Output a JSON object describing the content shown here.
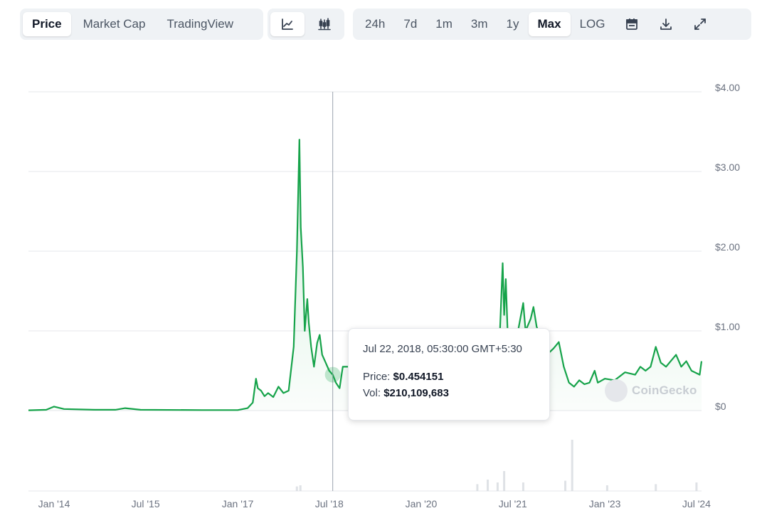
{
  "toolbar": {
    "view_tabs": [
      {
        "label": "Price",
        "active": true
      },
      {
        "label": "Market Cap",
        "active": false
      },
      {
        "label": "TradingView",
        "active": false
      }
    ],
    "chart_type_icons": [
      "line-chart-icon",
      "candlestick-icon"
    ],
    "ranges": [
      {
        "label": "24h",
        "active": false
      },
      {
        "label": "7d",
        "active": false
      },
      {
        "label": "1m",
        "active": false
      },
      {
        "label": "3m",
        "active": false
      },
      {
        "label": "1y",
        "active": false
      },
      {
        "label": "Max",
        "active": true
      },
      {
        "label": "LOG",
        "active": false
      }
    ],
    "tool_icons": [
      "calendar-icon",
      "download-icon",
      "fullscreen-icon"
    ]
  },
  "tooltip": {
    "date": "Jul 22, 2018, 05:30:00 GMT+5:30",
    "price_label": "Price:",
    "price_value": "$0.454151",
    "vol_label": "Vol:",
    "vol_value": "$210,109,683"
  },
  "watermark": "CoinGecko",
  "colors": {
    "line": "#16a34a",
    "area_fill": "#16a34a",
    "grid": "#e5e7eb",
    "volume": "#d1d5db",
    "crosshair": "#9ca3af"
  },
  "chart_data": {
    "type": "line",
    "title": "",
    "xlabel": "",
    "ylabel": "",
    "x_ticks": [
      "Jan '14",
      "Jul '15",
      "Jan '17",
      "Jul '18",
      "Jan '20",
      "Jul '21",
      "Jan '23",
      "Jul '24"
    ],
    "y_ticks": [
      "$0",
      "$1.00",
      "$2.00",
      "$3.00",
      "$4.00"
    ],
    "ylim": [
      0,
      4
    ],
    "xlim": [
      "2013-08-01",
      "2024-07-31"
    ],
    "grid": true,
    "series": [
      {
        "name": "",
        "points": [
          [
            "2013-08-01",
            0.004
          ],
          [
            "2013-11-15",
            0.01
          ],
          [
            "2014-01-01",
            0.05
          ],
          [
            "2014-03-01",
            0.02
          ],
          [
            "2014-09-01",
            0.01
          ],
          [
            "2015-01-01",
            0.01
          ],
          [
            "2015-03-01",
            0.03
          ],
          [
            "2015-06-01",
            0.01
          ],
          [
            "2016-06-01",
            0.006
          ],
          [
            "2017-01-01",
            0.006
          ],
          [
            "2017-03-01",
            0.03
          ],
          [
            "2017-04-01",
            0.1
          ],
          [
            "2017-04-20",
            0.4
          ],
          [
            "2017-05-01",
            0.28
          ],
          [
            "2017-05-20",
            0.25
          ],
          [
            "2017-06-10",
            0.18
          ],
          [
            "2017-07-01",
            0.22
          ],
          [
            "2017-08-01",
            0.17
          ],
          [
            "2017-09-01",
            0.3
          ],
          [
            "2017-10-01",
            0.22
          ],
          [
            "2017-11-01",
            0.25
          ],
          [
            "2017-12-01",
            0.8
          ],
          [
            "2017-12-20",
            2.0
          ],
          [
            "2018-01-04",
            3.4
          ],
          [
            "2018-01-12",
            2.3
          ],
          [
            "2018-01-25",
            1.8
          ],
          [
            "2018-02-05",
            1.0
          ],
          [
            "2018-02-20",
            1.4
          ],
          [
            "2018-03-01",
            1.1
          ],
          [
            "2018-03-15",
            0.8
          ],
          [
            "2018-04-01",
            0.55
          ],
          [
            "2018-04-20",
            0.85
          ],
          [
            "2018-05-05",
            0.95
          ],
          [
            "2018-05-20",
            0.7
          ],
          [
            "2018-06-10",
            0.6
          ],
          [
            "2018-07-01",
            0.5
          ],
          [
            "2018-07-22",
            0.45
          ],
          [
            "2018-08-10",
            0.35
          ],
          [
            "2018-09-01",
            0.28
          ],
          [
            "2018-09-20",
            0.55
          ],
          [
            "2021-04-01",
            0.55
          ],
          [
            "2021-04-15",
            1.0
          ],
          [
            "2021-05-01",
            1.85
          ],
          [
            "2021-05-10",
            1.2
          ],
          [
            "2021-05-20",
            1.65
          ],
          [
            "2021-06-01",
            0.9
          ],
          [
            "2021-07-01",
            0.65
          ],
          [
            "2021-08-01",
            1.0
          ],
          [
            "2021-09-01",
            1.35
          ],
          [
            "2021-09-15",
            1.0
          ],
          [
            "2021-10-15",
            1.15
          ],
          [
            "2021-11-01",
            1.3
          ],
          [
            "2021-11-20",
            1.05
          ],
          [
            "2022-01-01",
            0.85
          ],
          [
            "2022-01-20",
            0.7
          ],
          [
            "2022-03-01",
            0.78
          ],
          [
            "2022-04-01",
            0.86
          ],
          [
            "2022-05-01",
            0.55
          ],
          [
            "2022-06-01",
            0.35
          ],
          [
            "2022-07-01",
            0.3
          ],
          [
            "2022-08-01",
            0.38
          ],
          [
            "2022-09-01",
            0.33
          ],
          [
            "2022-10-01",
            0.35
          ],
          [
            "2022-11-01",
            0.5
          ],
          [
            "2022-11-20",
            0.35
          ],
          [
            "2023-01-01",
            0.4
          ],
          [
            "2023-03-01",
            0.38
          ],
          [
            "2023-05-01",
            0.48
          ],
          [
            "2023-07-01",
            0.45
          ],
          [
            "2023-08-01",
            0.55
          ],
          [
            "2023-09-01",
            0.5
          ],
          [
            "2023-10-01",
            0.55
          ],
          [
            "2023-11-01",
            0.8
          ],
          [
            "2023-12-01",
            0.6
          ],
          [
            "2024-01-01",
            0.55
          ],
          [
            "2024-03-01",
            0.7
          ],
          [
            "2024-04-01",
            0.55
          ],
          [
            "2024-05-01",
            0.62
          ],
          [
            "2024-06-01",
            0.5
          ],
          [
            "2024-07-20",
            0.45
          ],
          [
            "2024-07-31",
            0.62
          ]
        ]
      }
    ],
    "volume_spikes": [
      [
        "2017-12-20",
        0.08
      ],
      [
        "2018-01-10",
        0.1
      ],
      [
        "2020-12-01",
        0.12
      ],
      [
        "2021-02-01",
        0.2
      ],
      [
        "2021-04-01",
        0.15
      ],
      [
        "2021-05-10",
        0.35
      ],
      [
        "2021-09-01",
        0.15
      ],
      [
        "2022-05-10",
        0.18
      ],
      [
        "2022-06-20",
        0.9
      ],
      [
        "2023-01-15",
        0.1
      ],
      [
        "2023-11-01",
        0.12
      ],
      [
        "2024-07-01",
        0.15
      ]
    ]
  }
}
